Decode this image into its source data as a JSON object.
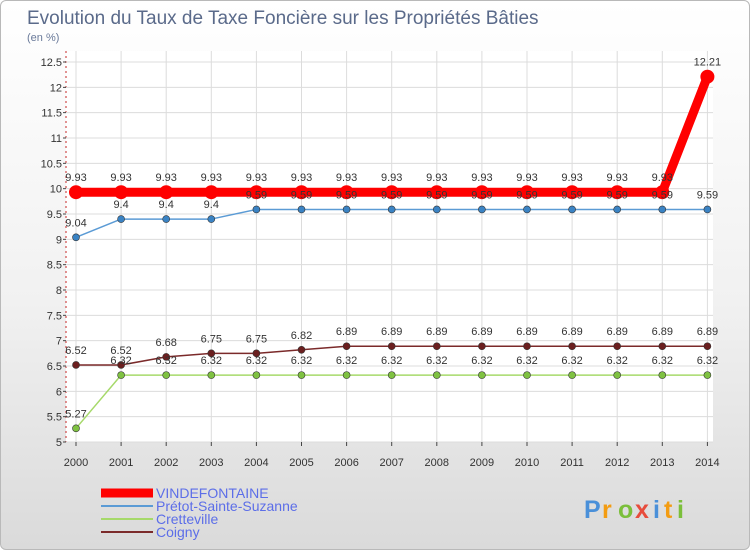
{
  "chart_data": {
    "type": "line",
    "title": "Evolution du Taux de Taxe Foncière sur les Propriétés Bâties",
    "subtitle": "(en %)",
    "x": [
      "2000",
      "2001",
      "2002",
      "2003",
      "2004",
      "2005",
      "2006",
      "2007",
      "2008",
      "2009",
      "2010",
      "2011",
      "2012",
      "2013",
      "2014"
    ],
    "ylim": [
      5,
      12.5
    ],
    "yticks": [
      "5",
      "5.5",
      "6",
      "6.5",
      "7",
      "7.5",
      "8",
      "8.5",
      "9",
      "9.5",
      "10",
      "10.5",
      "11",
      "11.5",
      "12",
      "12.5"
    ],
    "series": [
      {
        "name": "VINDEFONTAINE",
        "color": "#ff0000",
        "marker": "#ff0000",
        "width": 9,
        "values": [
          9.93,
          9.93,
          9.93,
          9.93,
          9.93,
          9.93,
          9.93,
          9.93,
          9.93,
          9.93,
          9.93,
          9.93,
          9.93,
          9.93,
          12.21
        ],
        "labels": [
          "9.93",
          "9.93",
          "9.93",
          "9.93",
          "9.93",
          "9.93",
          "9.93",
          "9.93",
          "9.93",
          "9.93",
          "9.93",
          "9.93",
          "9.93",
          "9.93",
          "12.21"
        ]
      },
      {
        "name": "Prétot-Sainte-Suzanne",
        "color": "#5b9bd5",
        "marker": "#3a83c4",
        "width": 1.5,
        "values": [
          9.04,
          9.4,
          9.4,
          9.4,
          9.59,
          9.59,
          9.59,
          9.59,
          9.59,
          9.59,
          9.59,
          9.59,
          9.59,
          9.59,
          9.59
        ],
        "labels": [
          "9.04",
          "9.4",
          "9.4",
          "9.4",
          "9.59",
          "9.59",
          "9.59",
          "9.59",
          "9.59",
          "9.59",
          "9.59",
          "9.59",
          "9.59",
          "9.59",
          "9.59"
        ]
      },
      {
        "name": "Cretteville",
        "color": "#a6d96a",
        "marker": "#7fc241",
        "width": 1.5,
        "values": [
          5.27,
          6.32,
          6.32,
          6.32,
          6.32,
          6.32,
          6.32,
          6.32,
          6.32,
          6.32,
          6.32,
          6.32,
          6.32,
          6.32,
          6.32
        ],
        "labels": [
          "5.27",
          "6.32",
          "6.32",
          "6.32",
          "6.32",
          "6.32",
          "6.32",
          "6.32",
          "6.32",
          "6.32",
          "6.32",
          "6.32",
          "6.32",
          "6.32",
          "6.32"
        ]
      },
      {
        "name": "Coigny",
        "color": "#7b2a2a",
        "marker": "#6b1f1f",
        "width": 1.5,
        "values": [
          6.52,
          6.52,
          6.68,
          6.75,
          6.75,
          6.82,
          6.89,
          6.89,
          6.89,
          6.89,
          6.89,
          6.89,
          6.89,
          6.89,
          6.89
        ],
        "labels": [
          "6.52",
          "6.52",
          "6.68",
          "6.75",
          "6.75",
          "6.82",
          "6.89",
          "6.89",
          "6.89",
          "6.89",
          "6.89",
          "6.89",
          "6.89",
          "6.89",
          "6.89"
        ]
      }
    ]
  },
  "logo": {
    "letters": [
      "P",
      "r",
      "o",
      "x",
      "i",
      "t",
      "i"
    ],
    "colors": [
      "#4a90d9",
      "#f39c12",
      "#7bbf3b",
      "#e74c3c",
      "#4a90d9",
      "#f39c12",
      "#7bbf3b"
    ]
  }
}
